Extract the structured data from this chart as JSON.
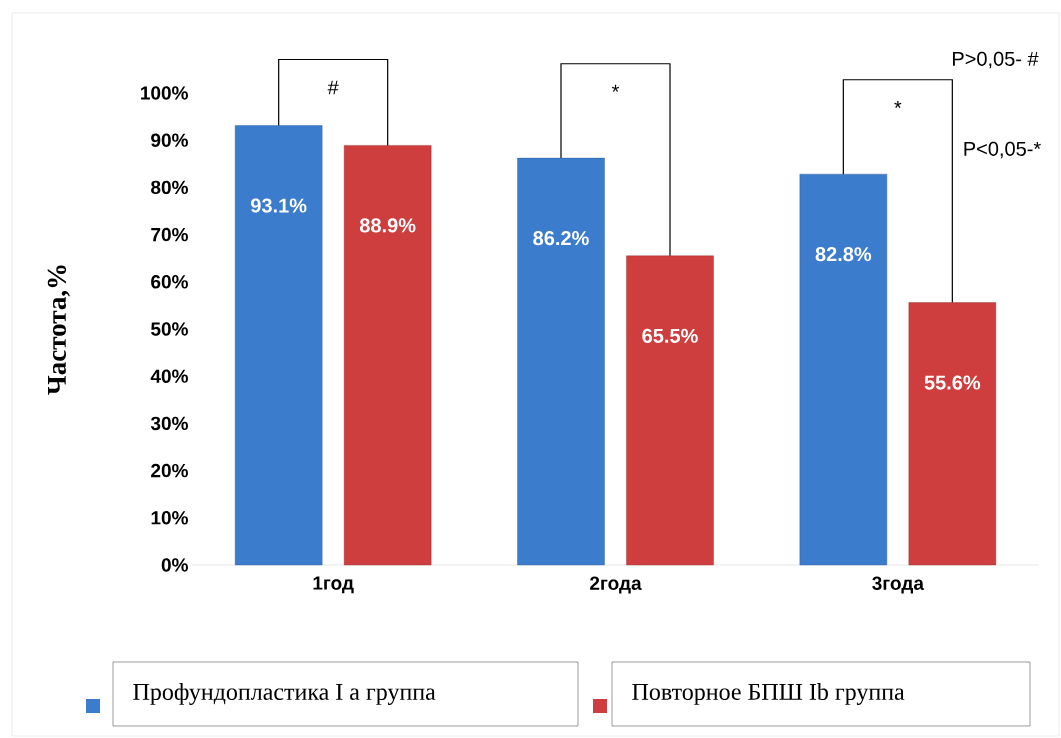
{
  "chart_data": {
    "type": "bar",
    "ylabel": "Частота,%",
    "categories": [
      "1год",
      "2года",
      "3года"
    ],
    "series": [
      {
        "name": "Профундопластика I а группа",
        "color": "#3c7ccc",
        "values": [
          93.1,
          86.2,
          82.8
        ],
        "value_labels": [
          "93.1%",
          "86.2%",
          "82.8%"
        ]
      },
      {
        "name": "Повторное БПШ Ib группа",
        "color": "#cf3e3e",
        "values": [
          88.9,
          65.5,
          55.6
        ],
        "value_labels": [
          "88.9%",
          "65.5%",
          "55.6%"
        ]
      }
    ],
    "ylim": [
      0,
      100
    ],
    "yticks": [
      {
        "value": 0,
        "label": "0%"
      },
      {
        "value": 10,
        "label": "10%"
      },
      {
        "value": 20,
        "label": "20%"
      },
      {
        "value": 30,
        "label": "30%"
      },
      {
        "value": 40,
        "label": "40%"
      },
      {
        "value": 50,
        "label": "50%"
      },
      {
        "value": 60,
        "label": "60%"
      },
      {
        "value": 70,
        "label": "70%"
      },
      {
        "value": 80,
        "label": "80%"
      },
      {
        "value": 90,
        "label": "90%"
      },
      {
        "value": 100,
        "label": "100%"
      }
    ],
    "grid": false,
    "legend": "bottom",
    "annotations": [
      "#",
      "*",
      "*",
      "P>0,05- #",
      "P<0,05-*"
    ]
  }
}
